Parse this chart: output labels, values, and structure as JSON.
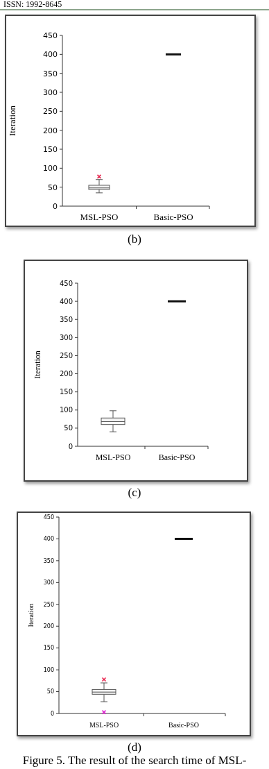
{
  "chart_data": [
    {
      "type": "box",
      "categories": [
        "MSL-PSO",
        "Basic-PSO"
      ],
      "ylabel": "Iteration",
      "ylim": [
        0,
        450
      ],
      "yticks": [
        0,
        50,
        100,
        150,
        200,
        250,
        300,
        350,
        400,
        450
      ],
      "series": [
        {
          "color": "#555555",
          "boxes": [
            {
              "low": 35,
              "q1": 44,
              "median": 48,
              "q3": 55,
              "high": 70,
              "outliers": [
                78
              ]
            },
            null
          ]
        },
        {
          "color": "#111111",
          "boxes": [
            null,
            {
              "low": 400,
              "q1": 400,
              "median": 400,
              "q3": 400,
              "high": 400
            }
          ]
        }
      ],
      "annotations": [
        "ISSN: 1992-8645",
        "(b)"
      ]
    },
    {
      "type": "box",
      "categories": [
        "MSL-PSO",
        "Basic-PSO"
      ],
      "ylabel": "Iteration",
      "ylim": [
        0,
        450
      ],
      "yticks": [
        0,
        50,
        100,
        150,
        200,
        250,
        300,
        350,
        400,
        450
      ],
      "series": [
        {
          "color": "#555555",
          "boxes": [
            {
              "low": 40,
              "q1": 60,
              "median": 68,
              "q3": 78,
              "high": 98
            },
            null
          ]
        },
        {
          "color": "#111111",
          "boxes": [
            null,
            {
              "low": 400,
              "q1": 400,
              "median": 400,
              "q3": 400,
              "high": 400
            }
          ]
        }
      ],
      "annotations": [
        "(c)"
      ]
    },
    {
      "type": "box",
      "categories": [
        "MSL-PSO",
        "Basic-PSO"
      ],
      "ylabel": "Iteration",
      "ylim": [
        0,
        450
      ],
      "yticks": [
        0,
        50,
        100,
        150,
        200,
        250,
        300,
        350,
        400,
        450
      ],
      "series": [
        {
          "color": "#555555",
          "boxes": [
            {
              "low": 27,
              "q1": 44,
              "median": 49,
              "q3": 55,
              "high": 70,
              "outliers": [
                78,
                3
              ]
            },
            null
          ]
        },
        {
          "color": "#111111",
          "boxes": [
            null,
            {
              "low": 400,
              "q1": 400,
              "median": 400,
              "q3": 400,
              "high": 400
            }
          ]
        }
      ],
      "annotations": [
        "(d)",
        "Figure 5. The result of the search time of MSL-"
      ]
    }
  ]
}
